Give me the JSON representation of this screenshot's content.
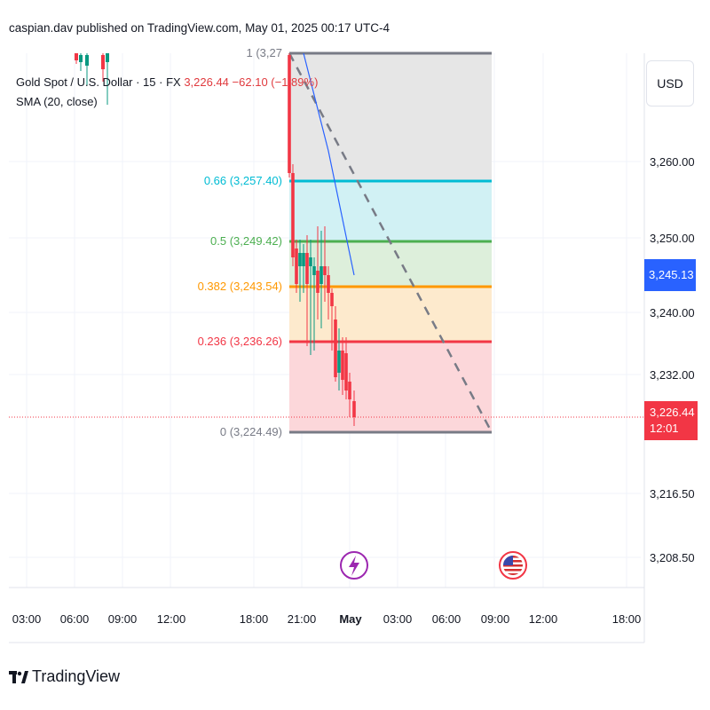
{
  "header": {
    "published": "caspian.dav published on TradingView.com, May 01, 2025 00:17 UTC-4"
  },
  "legend": {
    "symbol": "Gold Spot / U.S. Dollar · 15 · FX",
    "price": "3,226.44",
    "change": "−62.10 (−1.89%)",
    "indicator": "SMA (20, close)"
  },
  "currency_button": "USD",
  "brand": {
    "name": "TradingView"
  },
  "last_price_tag": {
    "price": "3,226.44",
    "countdown": "12:01",
    "color": "#f23645"
  },
  "sma_tag": {
    "price": "3,245.13",
    "color": "#2962ff"
  },
  "fib_labels": {
    "l1": "1 (3,27",
    "l066": "0.66 (3,257.40)",
    "l05": "0.5 (3,249.42)",
    "l0382": "0.382 (3,243.54)",
    "l0236": "0.236 (3,236.26)",
    "l0": "0 (3,224.49)"
  },
  "colors": {
    "up": "#089981",
    "down": "#f23645",
    "fib_066": "#00bcd4",
    "fib_05": "#4caf50",
    "fib_0382": "#ff9800",
    "fib_0236": "#f23645",
    "fib_edge": "#787b86"
  },
  "chart_data": {
    "type": "candlestick",
    "y_axis_ticks": [
      "3,260.00",
      "3,250.00",
      "3,240.00",
      "3,232.00",
      "3,216.50",
      "3,208.50"
    ],
    "x_axis_ticks": [
      "03:00",
      "06:00",
      "09:00",
      "12:00",
      "18:00",
      "21:00",
      "May",
      "03:00",
      "06:00",
      "09:00",
      "12:00",
      "18:00"
    ],
    "fibonacci_retracement": [
      {
        "level": 1,
        "price": 3275
      },
      {
        "level": 0.66,
        "price": 3257.4
      },
      {
        "level": 0.5,
        "price": 3249.42
      },
      {
        "level": 0.382,
        "price": 3243.54
      },
      {
        "level": 0.236,
        "price": 3236.26
      },
      {
        "level": 0,
        "price": 3224.49
      }
    ],
    "last_price": 3226.44,
    "sma_value": 3245.13,
    "events": [
      "lightning-event-icon",
      "us-flag-event-icon"
    ]
  }
}
